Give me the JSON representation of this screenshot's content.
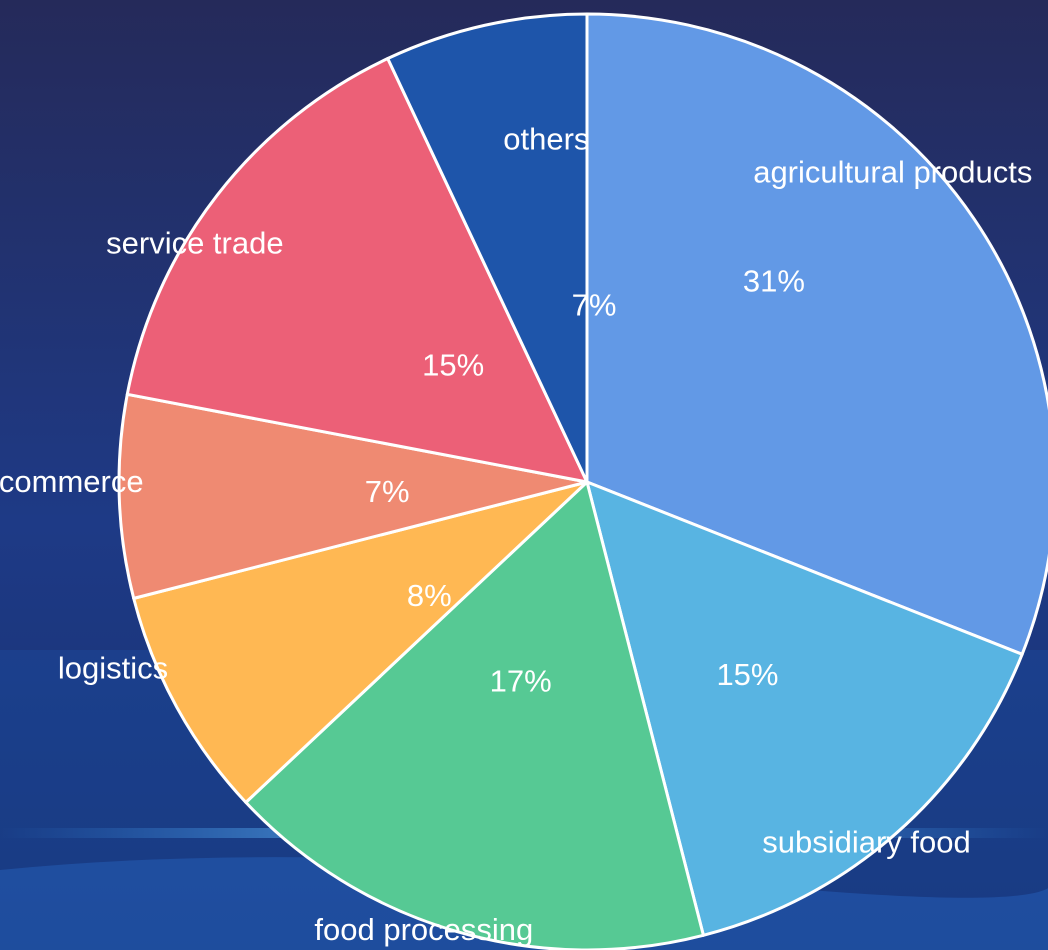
{
  "chart_data": {
    "type": "pie",
    "slices": [
      {
        "label": "agricultural products",
        "value": 31,
        "value_label": "31%",
        "color": "#6299e6"
      },
      {
        "label": "subsidiary food",
        "value": 15,
        "value_label": "15%",
        "color": "#58b4e2"
      },
      {
        "label": "food processing",
        "value": 17,
        "value_label": "17%",
        "color": "#56c994"
      },
      {
        "label": "logistics",
        "value": 8,
        "value_label": "8%",
        "color": "#ffb853"
      },
      {
        "label": "e-commerce",
        "value": 7,
        "value_label": "7%",
        "color": "#ef8a72"
      },
      {
        "label": "service trade",
        "value": 15,
        "value_label": "15%",
        "color": "#ec6077"
      },
      {
        "label": "others",
        "value": 7,
        "value_label": "7%",
        "color": "#1e55aa"
      }
    ],
    "start_angle_deg": 0,
    "direction": "clockwise",
    "title": ""
  },
  "colors": {
    "background_top": "#242b5c",
    "background_bottom": "#1a3f8f",
    "slice_border": "#ffffff",
    "label_text": "#ffffff"
  }
}
